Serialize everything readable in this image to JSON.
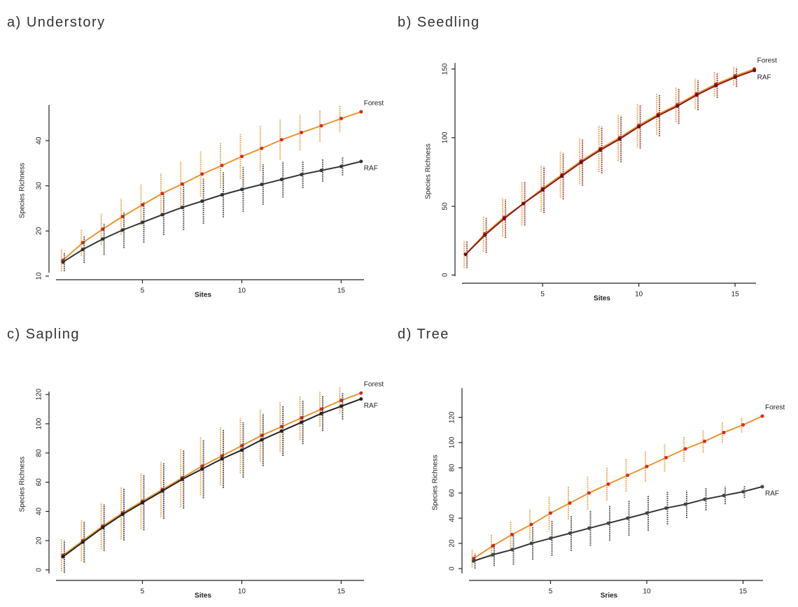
{
  "chart_data": [
    {
      "type": "line",
      "title": "a) Understory",
      "xlabel": "Sites",
      "ylabel": "Species Richness",
      "x": [
        1,
        2,
        3,
        4,
        5,
        6,
        7,
        8,
        9,
        10,
        11,
        12,
        13,
        14,
        15,
        16
      ],
      "xlim": [
        0.3,
        16.5
      ],
      "xticks": [
        5,
        10,
        15
      ],
      "ylim": [
        9.2,
        48.7
      ],
      "yticks": [
        10,
        20,
        30,
        40
      ],
      "series": [
        {
          "name": "Forest",
          "color": "#e8962e",
          "marker": "#d62c1f",
          "values": [
            13.5,
            17.4,
            20.4,
            23.2,
            25.8,
            28.3,
            30.4,
            32.6,
            34.5,
            36.5,
            38.3,
            40.2,
            41.8,
            43.3,
            44.9,
            46.4
          ],
          "errors": [
            2.5,
            3,
            3.5,
            4,
            4.5,
            4.5,
            5,
            5,
            5,
            5,
            5,
            4.5,
            4,
            3.5,
            3,
            null
          ]
        },
        {
          "name": "RAF",
          "color": "#333333",
          "marker": "#333333",
          "values": [
            13.1,
            15.9,
            18.2,
            20.2,
            21.9,
            23.6,
            25.2,
            26.6,
            28.0,
            29.2,
            30.3,
            31.4,
            32.5,
            33.4,
            34.3,
            35.4
          ],
          "errors": [
            2,
            3,
            3.5,
            4,
            4.5,
            4.5,
            5,
            5,
            5,
            5,
            4.5,
            4,
            3,
            2.5,
            2,
            null
          ]
        }
      ]
    },
    {
      "type": "line",
      "title": "b) Seedling",
      "xlabel": "Sites",
      "ylabel": "Species Richness",
      "x": [
        1,
        2,
        3,
        4,
        5,
        6,
        7,
        8,
        9,
        10,
        11,
        12,
        13,
        14,
        15,
        16
      ],
      "xlim": [
        0.45,
        16.45
      ],
      "xticks": [
        5,
        10,
        15
      ],
      "ylim": [
        -6,
        157
      ],
      "yticks": [
        0,
        50,
        100,
        150
      ],
      "series": [
        {
          "name": "Forest",
          "color": "#e8962e",
          "marker": "#d62c1f",
          "values": [
            15,
            30,
            42,
            52,
            63,
            73,
            83,
            92,
            100,
            109,
            117,
            124,
            132,
            139,
            145,
            150
          ],
          "errors": [
            10,
            13,
            14,
            16,
            17,
            17,
            17,
            17,
            17,
            16,
            15,
            13,
            11,
            9,
            7,
            null
          ]
        },
        {
          "name": "RAF",
          "color": "#8b1a1a",
          "marker": "#6b1010",
          "values": [
            15,
            29,
            41,
            52,
            62,
            72,
            82,
            91,
            99,
            108,
            116,
            123,
            131,
            138,
            144,
            149
          ],
          "errors": [
            10,
            13,
            14,
            16,
            17,
            17,
            17,
            17,
            17,
            16,
            15,
            13,
            11,
            9,
            7,
            null
          ]
        }
      ]
    },
    {
      "type": "line",
      "title": "c) Sapling",
      "xlabel": "Sites",
      "ylabel": "Species Richness",
      "x": [
        1,
        2,
        3,
        4,
        5,
        6,
        7,
        8,
        9,
        10,
        11,
        12,
        13,
        14,
        15,
        16
      ],
      "xlim": [
        0.3,
        16.5
      ],
      "xticks": [
        5,
        10,
        15
      ],
      "ylim": [
        -7.2,
        124.4
      ],
      "yticks": [
        0,
        20,
        40,
        60,
        80,
        100,
        120
      ],
      "series": [
        {
          "name": "Forest",
          "color": "#e8962e",
          "marker": "#d62c1f",
          "values": [
            10,
            20,
            30,
            39,
            47,
            55,
            63,
            71,
            78,
            85,
            92,
            98,
            104,
            110,
            116,
            121
          ],
          "errors": [
            11,
            14,
            16,
            18,
            19,
            19,
            20,
            20,
            20,
            19,
            18,
            17,
            15,
            12,
            9,
            null
          ]
        },
        {
          "name": "RAF",
          "color": "#222222",
          "marker": "#222222",
          "values": [
            9,
            19,
            29,
            38,
            46,
            54,
            62,
            69,
            76,
            82,
            89,
            95,
            101,
            107,
            112,
            117
          ],
          "errors": [
            11,
            14,
            16,
            18,
            19,
            19,
            20,
            20,
            20,
            19,
            18,
            17,
            15,
            12,
            9,
            null
          ]
        }
      ]
    },
    {
      "type": "line",
      "title": "d) Tree",
      "xlabel": "Sries",
      "ylabel": "Species Richness",
      "x": [
        1,
        2,
        3,
        4,
        5,
        6,
        7,
        8,
        9,
        10,
        11,
        12,
        13,
        14,
        15,
        16
      ],
      "xlim": [
        0.4,
        16.4
      ],
      "xticks": [
        5,
        10,
        15
      ],
      "ylim": [
        -9.4,
        146
      ],
      "yticks": [
        0,
        20,
        40,
        60,
        80,
        100,
        120
      ],
      "series": [
        {
          "name": "Forest",
          "color": "#e8962e",
          "marker": "#d62c1f",
          "values": [
            8,
            18,
            27,
            35,
            44,
            52,
            60,
            67,
            74,
            81,
            88,
            95,
            101,
            108,
            114,
            121
          ],
          "errors": [
            7,
            9,
            11,
            12,
            13,
            13,
            13,
            13,
            13,
            12,
            11,
            10,
            9,
            8,
            6,
            null
          ]
        },
        {
          "name": "RAF",
          "color": "#333333",
          "marker": "#444444",
          "values": [
            6,
            11,
            15,
            20,
            24,
            28,
            32,
            36,
            40,
            44,
            48,
            51,
            55,
            58,
            61,
            65
          ],
          "errors": [
            6,
            9,
            12,
            13,
            14,
            14,
            14,
            14,
            14,
            14,
            13,
            11,
            9,
            7,
            5,
            null
          ]
        }
      ]
    }
  ]
}
